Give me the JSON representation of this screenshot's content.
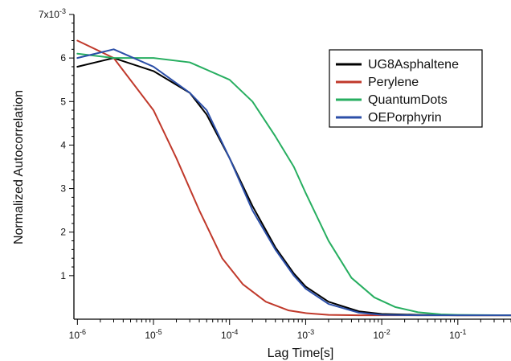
{
  "chart_data": {
    "type": "line",
    "xlabel": "Lag Time[s]",
    "ylabel": "Normalized Autocorrelation",
    "x_scale": "log",
    "x_range": [
      9e-07,
      0.5
    ],
    "y_range": [
      0,
      0.007
    ],
    "x_ticks": [
      {
        "value": 1e-06,
        "label_base": "10",
        "label_exp": "-6"
      },
      {
        "value": 1e-05,
        "label_base": "10",
        "label_exp": "-5"
      },
      {
        "value": 0.0001,
        "label_base": "10",
        "label_exp": "-4"
      },
      {
        "value": 0.001,
        "label_base": "10",
        "label_exp": "-3"
      },
      {
        "value": 0.01,
        "label_base": "10",
        "label_exp": "-2"
      },
      {
        "value": 0.1,
        "label_base": "10",
        "label_exp": "-1"
      }
    ],
    "y_ticks": [
      {
        "value": 0.001,
        "label": "1"
      },
      {
        "value": 0.002,
        "label": "2"
      },
      {
        "value": 0.003,
        "label": "3"
      },
      {
        "value": 0.004,
        "label": "4"
      },
      {
        "value": 0.005,
        "label": "5"
      },
      {
        "value": 0.006,
        "label": "6"
      },
      {
        "value": 0.007,
        "label": "7x10",
        "exp": "-3"
      }
    ],
    "legend_position": "top-right",
    "series": [
      {
        "name": "UG8Asphaltene",
        "color": "#000000",
        "x": [
          1e-06,
          3e-06,
          1e-05,
          3e-05,
          5e-05,
          0.0001,
          0.0002,
          0.0004,
          0.0007,
          0.001,
          0.002,
          0.005,
          0.01,
          0.03,
          0.1,
          0.3,
          0.5
        ],
        "y": [
          0.0058,
          0.006,
          0.0057,
          0.0052,
          0.0047,
          0.0037,
          0.0026,
          0.00165,
          0.00105,
          0.00075,
          0.0004,
          0.00018,
          0.00012,
          0.0001,
          9e-05,
          9e-05,
          9e-05
        ]
      },
      {
        "name": "Perylene",
        "color": "#c0392b",
        "x": [
          1e-06,
          3e-06,
          1e-05,
          2e-05,
          4e-05,
          8e-05,
          0.00015,
          0.0003,
          0.0006,
          0.001,
          0.002,
          0.005,
          0.01,
          0.03,
          0.1,
          0.5
        ],
        "y": [
          0.0064,
          0.006,
          0.0048,
          0.0037,
          0.0025,
          0.0014,
          0.0008,
          0.0004,
          0.0002,
          0.00014,
          0.0001,
          9e-05,
          9e-05,
          9e-05,
          9e-05,
          9e-05
        ]
      },
      {
        "name": "QuantumDots",
        "color": "#27ae60",
        "x": [
          1e-06,
          3e-06,
          1e-05,
          3e-05,
          0.0001,
          0.0002,
          0.0004,
          0.0007,
          0.001,
          0.002,
          0.004,
          0.008,
          0.015,
          0.03,
          0.06,
          0.1,
          0.5
        ],
        "y": [
          0.0061,
          0.006,
          0.006,
          0.0059,
          0.0055,
          0.005,
          0.0042,
          0.0035,
          0.0029,
          0.0018,
          0.00095,
          0.0005,
          0.00028,
          0.00016,
          0.00011,
          0.0001,
          9e-05
        ]
      },
      {
        "name": "OEPorphyrin",
        "color": "#2c4fa8",
        "x": [
          1e-06,
          3e-06,
          1e-05,
          3e-05,
          5e-05,
          0.0001,
          0.0002,
          0.0004,
          0.0007,
          0.001,
          0.002,
          0.005,
          0.01,
          0.03,
          0.1,
          0.3,
          0.5
        ],
        "y": [
          0.006,
          0.0062,
          0.0058,
          0.0052,
          0.0048,
          0.0037,
          0.0025,
          0.0016,
          0.001,
          0.0007,
          0.00035,
          0.00015,
          0.0001,
          9e-05,
          9e-05,
          9e-05,
          9e-05
        ]
      }
    ]
  }
}
